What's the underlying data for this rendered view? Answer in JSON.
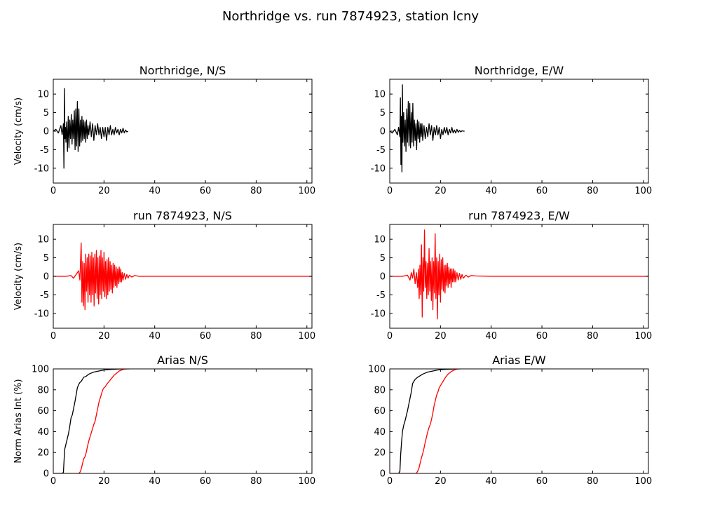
{
  "figure": {
    "title": "Northridge vs. run 7874923, station lcny"
  },
  "colors": {
    "observed": "#000000",
    "simulated": "#ff0000",
    "axes": "#000000",
    "background": "#ffffff"
  },
  "chart_data": [
    {
      "type": "line",
      "id": "ns-observed",
      "title": "Northridge, N/S",
      "xlabel": "",
      "ylabel": "Velocity (cm/s)",
      "xlim": [
        0,
        102
      ],
      "ylim": [
        -14,
        14
      ],
      "xticks": [
        0,
        20,
        40,
        60,
        80,
        100
      ],
      "yticks": [
        -10,
        -5,
        0,
        5,
        10
      ],
      "series": [
        {
          "color": "#000000",
          "x": [
            0,
            1,
            2,
            3,
            3.5,
            4,
            4.2,
            4.4,
            4.6,
            4.8,
            5,
            5.3,
            5.6,
            5.9,
            6.2,
            6.5,
            6.8,
            7.1,
            7.4,
            7.7,
            8,
            8.3,
            8.6,
            8.9,
            9.2,
            9.5,
            9.8,
            10.1,
            10.4,
            10.7,
            11,
            11.3,
            11.6,
            11.9,
            12.2,
            12.5,
            12.8,
            13.1,
            13.4,
            13.7,
            14,
            14.5,
            15,
            15.5,
            16,
            16.5,
            17,
            17.5,
            18,
            18.5,
            19,
            19.5,
            20,
            20.5,
            21,
            21.5,
            22,
            22.5,
            23,
            23.5,
            24,
            24.5,
            25,
            25.5,
            26,
            26.5,
            27,
            27.5,
            28,
            28.5,
            29,
            29.5
          ],
          "y": [
            0,
            0.5,
            -0.5,
            1.5,
            -1,
            2,
            -10,
            11.5,
            -2,
            1,
            -3,
            2.5,
            -5.5,
            4,
            -4.5,
            3,
            -2,
            4.5,
            -3.5,
            3,
            -2,
            5.5,
            -5,
            6,
            -4,
            8,
            -5.5,
            6,
            -4,
            3,
            -3,
            4,
            -2.5,
            3,
            -2,
            2.5,
            -3,
            3,
            -2,
            1.5,
            -1,
            2.5,
            -1.5,
            2,
            -2.5,
            1.5,
            -1,
            2,
            -1,
            1,
            -2,
            1,
            -1.5,
            1,
            -2.5,
            1,
            -1,
            1.5,
            -1,
            0.5,
            -1,
            1,
            -0.5,
            0.5,
            -1,
            0.5,
            -0.5,
            0.8,
            -0.5,
            0.3,
            -0.2,
            0
          ]
        }
      ]
    },
    {
      "type": "line",
      "id": "ew-observed",
      "title": "Northridge, E/W",
      "xlabel": "",
      "ylabel": "",
      "xlim": [
        0,
        102
      ],
      "ylim": [
        -14,
        14
      ],
      "xticks": [
        0,
        20,
        40,
        60,
        80,
        100
      ],
      "yticks": [
        -10,
        -5,
        0,
        5,
        10
      ],
      "series": [
        {
          "color": "#000000",
          "x": [
            0,
            1,
            2,
            3,
            3.5,
            4,
            4.2,
            4.4,
            4.6,
            4.8,
            5,
            5.2,
            5.5,
            5.8,
            6.1,
            6.4,
            6.7,
            7,
            7.3,
            7.6,
            7.9,
            8.2,
            8.5,
            8.8,
            9.1,
            9.4,
            9.7,
            10,
            10.3,
            10.6,
            10.9,
            11.2,
            11.5,
            11.8,
            12.1,
            12.4,
            12.7,
            13,
            13.5,
            14,
            14.5,
            15,
            15.5,
            16,
            16.5,
            17,
            17.5,
            18,
            18.5,
            19,
            19.5,
            20,
            20.5,
            21,
            21.5,
            22,
            22.5,
            23,
            23.5,
            24,
            24.5,
            25,
            25.5,
            26,
            26.5,
            27,
            27.5,
            28,
            28.5,
            29,
            29.5
          ],
          "y": [
            0,
            -0.5,
            0.5,
            -1,
            1,
            -1.5,
            9,
            -9,
            4,
            -11,
            12.5,
            -3,
            5,
            -4,
            3,
            -5.5,
            6,
            -3,
            8,
            -4,
            7.5,
            -4.5,
            5,
            -3,
            7.5,
            -4,
            3,
            -2.5,
            2,
            -5,
            3,
            -2,
            2.5,
            -3,
            2,
            -1.5,
            2,
            -2.5,
            1.5,
            -2,
            1,
            -1.5,
            2,
            -1,
            1.5,
            -2.5,
            1,
            -1,
            1.5,
            -1,
            1,
            -2,
            0.5,
            -1,
            1,
            -0.5,
            1,
            -1,
            0.5,
            -0.5,
            1,
            -0.5,
            0.3,
            -0.5,
            0.5,
            -0.3,
            0.2,
            -0.2,
            0.1,
            0,
            0
          ]
        }
      ]
    },
    {
      "type": "line",
      "id": "ns-simulated",
      "title": "run 7874923, N/S",
      "xlabel": "",
      "ylabel": "Velocity (cm/s)",
      "xlim": [
        0,
        102
      ],
      "ylim": [
        -14,
        14
      ],
      "xticks": [
        0,
        20,
        40,
        60,
        80,
        100
      ],
      "yticks": [
        -10,
        -5,
        0,
        5,
        10
      ],
      "series": [
        {
          "color": "#ff0000",
          "x": [
            0,
            5,
            7,
            8,
            9,
            9.5,
            10,
            10.5,
            11,
            11.3,
            11.6,
            11.9,
            12.2,
            12.5,
            12.8,
            13.1,
            13.4,
            13.7,
            14,
            14.3,
            14.6,
            14.9,
            15.2,
            15.5,
            15.8,
            16.1,
            16.4,
            16.7,
            17,
            17.3,
            17.6,
            17.9,
            18.2,
            18.5,
            18.8,
            19.1,
            19.4,
            19.7,
            20,
            20.3,
            20.6,
            20.9,
            21.2,
            21.5,
            21.8,
            22.1,
            22.4,
            22.7,
            23,
            23.3,
            23.6,
            23.9,
            24.2,
            24.5,
            24.8,
            25.1,
            25.4,
            25.7,
            26,
            26.3,
            26.6,
            26.9,
            27.2,
            27.5,
            28,
            28.5,
            29,
            29.5,
            30,
            31,
            32,
            33,
            34,
            35,
            40,
            60,
            80,
            102
          ],
          "y": [
            0,
            0,
            0.2,
            -0.5,
            0.5,
            1,
            1.5,
            -1,
            9,
            -7,
            4,
            -8,
            3.5,
            -9,
            6,
            -4,
            5,
            -7,
            6,
            -5,
            5.5,
            -7,
            6.5,
            -5,
            5,
            -8,
            6,
            -4.5,
            7,
            -6,
            5,
            -7.5,
            5.5,
            -5,
            7,
            -6,
            5,
            -4,
            6.5,
            -5.5,
            4,
            -6,
            4.5,
            -5,
            5,
            -4,
            4,
            -3.5,
            3,
            -4.5,
            3.5,
            -3,
            3,
            -2.5,
            2.5,
            -3,
            2,
            -2,
            2.5,
            -1.5,
            2,
            -1.5,
            1,
            -1,
            0.8,
            -0.8,
            0.5,
            -0.5,
            0.3,
            -0.2,
            0.2,
            0.1,
            0,
            0,
            0,
            0,
            0,
            0
          ]
        }
      ]
    },
    {
      "type": "line",
      "id": "ew-simulated",
      "title": "run 7874923, E/W",
      "xlabel": "",
      "ylabel": "",
      "xlim": [
        0,
        102
      ],
      "ylim": [
        -14,
        14
      ],
      "xticks": [
        0,
        20,
        40,
        60,
        80,
        100
      ],
      "yticks": [
        -10,
        -5,
        0,
        5,
        10
      ],
      "series": [
        {
          "color": "#ff0000",
          "x": [
            0,
            5,
            7,
            8,
            8.5,
            9,
            9.5,
            10,
            10.5,
            11,
            11.3,
            11.6,
            11.9,
            12.2,
            12.5,
            12.8,
            13.1,
            13.4,
            13.7,
            14,
            14.3,
            14.6,
            14.9,
            15.2,
            15.5,
            15.8,
            16.1,
            16.4,
            16.7,
            17,
            17.3,
            17.6,
            17.9,
            18.2,
            18.5,
            18.8,
            19.1,
            19.4,
            19.7,
            20,
            20.3,
            20.6,
            20.9,
            21.2,
            21.5,
            21.8,
            22.1,
            22.4,
            22.7,
            23,
            23.3,
            23.6,
            23.9,
            24.2,
            24.5,
            24.8,
            25.1,
            25.4,
            25.7,
            26,
            26.5,
            27,
            27.5,
            28,
            28.5,
            29,
            30,
            31,
            32,
            34,
            40,
            60,
            80,
            102
          ],
          "y": [
            0,
            0,
            0.3,
            -1,
            1,
            -0.5,
            2,
            -2,
            1,
            -3,
            2,
            -6,
            3,
            -5,
            8.5,
            -11,
            5,
            -4,
            12.5,
            -3,
            4,
            -6,
            3.5,
            -5,
            7.5,
            -4,
            4,
            -6.5,
            5,
            -9,
            4,
            -4.5,
            11.5,
            -6,
            5,
            -11.5,
            4,
            -5,
            6,
            -7,
            4.5,
            -3.5,
            5,
            -4,
            3,
            -4.5,
            3,
            -2.5,
            3.5,
            -3,
            2.5,
            -2,
            2,
            -3,
            2,
            -1.5,
            2,
            -1.5,
            1.5,
            -1.5,
            1,
            -1,
            0.8,
            -0.8,
            0.5,
            -0.5,
            0.3,
            -0.2,
            0.2,
            0.1,
            0,
            0,
            0,
            0
          ]
        }
      ]
    },
    {
      "type": "line",
      "id": "ns-arias",
      "title": "Arias N/S",
      "xlabel": "",
      "ylabel": "Norm Arias Int (%)",
      "xlim": [
        0,
        102
      ],
      "ylim": [
        0,
        100
      ],
      "xticks": [
        0,
        20,
        40,
        60,
        80,
        100
      ],
      "yticks": [
        0,
        20,
        40,
        60,
        80,
        100
      ],
      "series": [
        {
          "color": "#000000",
          "x": [
            0,
            3.5,
            4,
            4.2,
            4.5,
            5,
            5.5,
            6,
            6.5,
            7,
            7.5,
            8,
            8.5,
            9,
            9.5,
            10,
            10.5,
            11,
            11.5,
            12,
            13,
            14,
            15,
            16,
            17,
            18,
            19,
            20,
            22,
            24,
            26,
            28,
            30
          ],
          "y": [
            0,
            0,
            1,
            10,
            23,
            28,
            33,
            38,
            45,
            53,
            56,
            62,
            68,
            75,
            82,
            85,
            87,
            88,
            90,
            92,
            93,
            95,
            96,
            97,
            97.5,
            98,
            98.5,
            99,
            99.4,
            99.7,
            99.9,
            100,
            100
          ]
        },
        {
          "color": "#ff0000",
          "x": [
            0,
            10,
            10.5,
            11,
            11.5,
            12,
            12.5,
            13,
            13.5,
            14,
            14.5,
            15,
            15.5,
            16,
            16.5,
            17,
            17.5,
            18,
            18.5,
            19,
            19.5,
            20,
            20.5,
            21,
            22,
            23,
            24,
            25,
            26,
            27,
            28,
            29
          ],
          "y": [
            0,
            0,
            1,
            4,
            9,
            14,
            16,
            20,
            26,
            31,
            35,
            39,
            43,
            47,
            50,
            56,
            62,
            68,
            72,
            76,
            80,
            82,
            83,
            85,
            88,
            91,
            94,
            96,
            98,
            99,
            99.8,
            100
          ]
        }
      ]
    },
    {
      "type": "line",
      "id": "ew-arias",
      "title": "Arias E/W",
      "xlabel": "",
      "ylabel": "",
      "xlim": [
        0,
        102
      ],
      "ylim": [
        0,
        100
      ],
      "xticks": [
        0,
        20,
        40,
        60,
        80,
        100
      ],
      "yticks": [
        0,
        20,
        40,
        60,
        80,
        100
      ],
      "series": [
        {
          "color": "#000000",
          "x": [
            0,
            3.5,
            4,
            4.3,
            4.6,
            5,
            5.5,
            6,
            6.5,
            7,
            7.5,
            8,
            8.5,
            9,
            9.5,
            10,
            11,
            12,
            13,
            14,
            15,
            16,
            17,
            18,
            19,
            20,
            22,
            24,
            26,
            28
          ],
          "y": [
            0,
            0,
            2,
            18,
            28,
            40,
            46,
            50,
            55,
            60,
            66,
            72,
            78,
            86,
            88,
            90,
            92,
            93.5,
            95,
            96,
            97,
            97.5,
            98,
            98.5,
            99,
            99.3,
            99.6,
            99.8,
            100,
            100
          ]
        },
        {
          "color": "#ff0000",
          "x": [
            0,
            10.5,
            11,
            11.5,
            12,
            12.5,
            13,
            13.5,
            14,
            14.5,
            15,
            15.5,
            16,
            16.5,
            17,
            17.5,
            18,
            18.5,
            19,
            19.5,
            20,
            21,
            22,
            23,
            24,
            25,
            26,
            27
          ],
          "y": [
            0,
            0,
            2,
            5,
            10,
            15,
            19,
            24,
            30,
            35,
            40,
            44,
            47,
            52,
            58,
            65,
            70,
            75,
            78,
            82,
            84,
            88,
            92,
            95,
            97,
            98.5,
            99.5,
            100
          ]
        }
      ]
    }
  ]
}
